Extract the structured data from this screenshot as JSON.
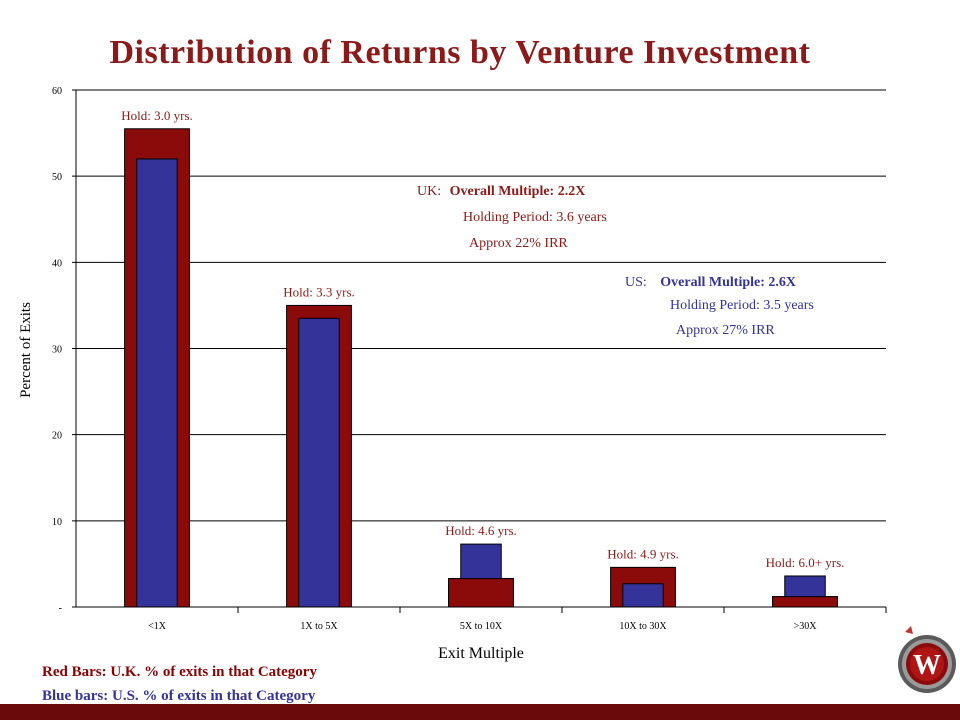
{
  "title": "Distribution of Returns by Venture Investment",
  "chart_data": {
    "type": "bar",
    "categories": [
      "<1X",
      "1X to 5X",
      "5X to 10X",
      "10X to 30X",
      ">30X"
    ],
    "series": [
      {
        "name": "Red Bars: U.K. % of exits in that Category",
        "color": "#8b0a0a",
        "values": [
          55.5,
          35.0,
          3.3,
          4.6,
          1.2
        ]
      },
      {
        "name": "Blue bars: U.S. % of exits in that Category",
        "color": "#333399",
        "values": [
          52.0,
          33.5,
          7.3,
          2.7,
          3.6
        ]
      }
    ],
    "ylabel": "Percent of Exits",
    "xlabel": "Exit Multiple",
    "ylim": [
      0,
      60
    ],
    "yticks": [
      0,
      10,
      20,
      30,
      40,
      50,
      60
    ],
    "ytick_labels": [
      "-",
      "10",
      "20",
      "30",
      "40",
      "50",
      "60"
    ],
    "grid": true,
    "hold_labels": [
      "Hold: 3.0 yrs.",
      "Hold: 3.3 yrs.",
      "Hold: 4.6 yrs.",
      "Hold: 4.9 yrs.",
      "Hold: 6.0+ yrs."
    ]
  },
  "annotations": {
    "uk": {
      "prefix": "UK:",
      "multiple": "Overall Multiple: 2.2X",
      "holding": "Holding Period: 3.6 years",
      "irr": "Approx 22% IRR",
      "color": "#8b1a1a"
    },
    "us": {
      "prefix": "US:",
      "multiple": "Overall Multiple: 2.6X",
      "holding": "Holding Period: 3.5 years",
      "irr": "Approx 27% IRR",
      "color": "#333399"
    }
  },
  "legend": {
    "red": "Red Bars: U.K. % of exits in that Category",
    "blue": "Blue bars: U.S. % of exits in that Category"
  },
  "logo": {
    "letter": "W",
    "icon": "w-shield-logo-icon"
  },
  "colors": {
    "accent": "#8b1a1a",
    "uk_bar": "#8b0a0a",
    "us_bar": "#333399",
    "bottom_bar": "#6a0a0a"
  }
}
